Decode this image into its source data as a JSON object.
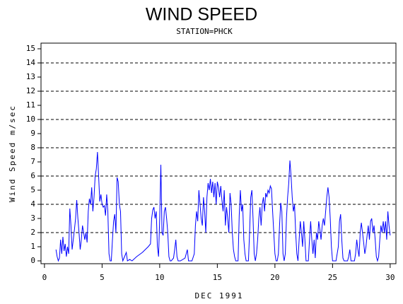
{
  "chart_data": {
    "type": "line",
    "title": "WIND SPEED",
    "subtitle": "STATION=PHCK",
    "ylabel": "Wind Speed m/sec",
    "xlabel": "DEC 1991",
    "color": "#0000ff",
    "xlim": [
      -0.3,
      30.5
    ],
    "ylim": [
      -0.2,
      15.4
    ],
    "xticks": [
      0,
      5,
      10,
      15,
      20,
      25,
      30
    ],
    "yticks": [
      0,
      1,
      2,
      3,
      4,
      5,
      6,
      7,
      8,
      9,
      10,
      11,
      12,
      13,
      14,
      15
    ],
    "ygrid": [
      2,
      4,
      6,
      8,
      10,
      12,
      14
    ],
    "x": [
      1.0,
      1.1,
      1.2,
      1.3,
      1.4,
      1.5,
      1.6,
      1.7,
      1.8,
      1.9,
      2.0,
      2.1,
      2.2,
      2.3,
      2.4,
      2.5,
      2.6,
      2.7,
      2.8,
      2.9,
      3.0,
      3.1,
      3.2,
      3.3,
      3.4,
      3.5,
      3.6,
      3.7,
      3.8,
      3.9,
      4.0,
      4.1,
      4.2,
      4.3,
      4.4,
      4.5,
      4.6,
      4.7,
      4.8,
      4.9,
      5.0,
      5.1,
      5.2,
      5.3,
      5.4,
      5.5,
      5.6,
      5.7,
      5.8,
      5.9,
      6.0,
      6.1,
      6.2,
      6.3,
      6.4,
      6.5,
      6.6,
      6.7,
      6.8,
      6.9,
      7.0,
      7.1,
      7.2,
      7.4,
      7.6,
      8.0,
      8.5,
      9.0,
      9.2,
      9.3,
      9.4,
      9.5,
      9.6,
      9.7,
      9.8,
      9.9,
      10.0,
      10.1,
      10.2,
      10.3,
      10.4,
      10.5,
      10.6,
      10.7,
      10.8,
      10.9,
      11.0,
      11.2,
      11.3,
      11.4,
      11.5,
      11.6,
      11.8,
      12.2,
      12.4,
      12.5,
      12.8,
      13.0,
      13.1,
      13.2,
      13.3,
      13.4,
      13.5,
      13.6,
      13.7,
      13.8,
      13.9,
      14.0,
      14.1,
      14.2,
      14.3,
      14.4,
      14.5,
      14.6,
      14.7,
      14.8,
      14.9,
      15.0,
      15.1,
      15.2,
      15.3,
      15.4,
      15.5,
      15.6,
      15.7,
      15.8,
      15.9,
      16.0,
      16.1,
      16.2,
      16.3,
      16.4,
      16.5,
      16.6,
      16.7,
      16.8,
      16.9,
      17.0,
      17.1,
      17.2,
      17.3,
      17.4,
      17.5,
      17.6,
      17.7,
      17.8,
      17.9,
      18.0,
      18.1,
      18.2,
      18.3,
      18.4,
      18.5,
      18.6,
      18.7,
      18.8,
      18.9,
      19.0,
      19.1,
      19.2,
      19.3,
      19.4,
      19.5,
      19.6,
      19.7,
      19.8,
      19.9,
      20.0,
      20.1,
      20.2,
      20.3,
      20.4,
      20.5,
      20.6,
      20.7,
      20.8,
      20.9,
      21.0,
      21.1,
      21.2,
      21.3,
      21.4,
      21.5,
      21.6,
      21.7,
      21.8,
      21.9,
      22.0,
      22.1,
      22.2,
      22.3,
      22.4,
      22.5,
      22.6,
      22.7,
      22.8,
      22.9,
      23.0,
      23.1,
      23.2,
      23.3,
      23.4,
      23.5,
      23.6,
      23.7,
      23.8,
      23.9,
      24.0,
      24.1,
      24.2,
      24.3,
      24.4,
      24.5,
      24.6,
      24.7,
      24.8,
      24.9,
      25.0,
      25.1,
      25.2,
      25.3,
      25.4,
      25.5,
      25.6,
      25.7,
      25.8,
      25.9,
      26.0,
      26.1,
      26.2,
      26.3,
      26.4,
      26.5,
      26.6,
      26.7,
      26.8,
      26.9,
      27.0,
      27.1,
      27.2,
      27.3,
      27.4,
      27.5,
      27.6,
      27.7,
      27.8,
      27.9,
      28.0,
      28.1,
      28.2,
      28.3,
      28.4,
      28.5,
      28.6,
      28.7,
      28.8,
      28.9,
      29.0,
      29.1,
      29.2,
      29.3,
      29.4,
      29.5,
      29.6,
      29.7,
      29.8,
      29.9,
      30.0
    ],
    "values": [
      0.8,
      0.3,
      0,
      0.2,
      1.5,
      0.5,
      1.7,
      0.7,
      1.2,
      0.3,
      1.0,
      0.5,
      3.7,
      2.5,
      0.8,
      1.5,
      2.2,
      3.0,
      4.3,
      3.0,
      2.0,
      0.8,
      1.5,
      2.5,
      2.0,
      1.5,
      2.0,
      1.3,
      3.5,
      4.4,
      4.0,
      5.2,
      3.5,
      4.5,
      6.0,
      6.5,
      7.7,
      6.0,
      4.2,
      4.7,
      4.0,
      3.8,
      3.9,
      3.2,
      4.7,
      3.5,
      0.5,
      0,
      0,
      1.5,
      2.8,
      3.3,
      2.0,
      5.9,
      5.6,
      4.0,
      3.5,
      0.5,
      0,
      0.2,
      0.4,
      0.6,
      0,
      0.1,
      0,
      0.3,
      0.6,
      1.0,
      1.2,
      3.0,
      3.6,
      3.8,
      3.0,
      3.5,
      1.0,
      0.3,
      3.0,
      6.8,
      2.0,
      1.8,
      3.5,
      3.8,
      3.0,
      2.0,
      0.3,
      0,
      0,
      0.2,
      0.8,
      1.5,
      0.3,
      0,
      0,
      0.2,
      0.8,
      0,
      0,
      0.5,
      2.5,
      3.5,
      2.8,
      5.0,
      4.0,
      3.0,
      2.5,
      4.5,
      3.5,
      2.0,
      4.5,
      5.5,
      5.0,
      5.8,
      4.8,
      5.6,
      4.5,
      5.5,
      4.0,
      5.6,
      5.2,
      4.5,
      5.3,
      4.3,
      3.5,
      5.0,
      2.5,
      3.8,
      3.0,
      2.0,
      4.8,
      4.0,
      2.0,
      0.8,
      0.3,
      0,
      0,
      0,
      3.2,
      5.0,
      3.5,
      4.0,
      1.5,
      0.5,
      0,
      0,
      0,
      2.0,
      4.5,
      5.0,
      3.0,
      0.5,
      0,
      0.5,
      1.5,
      3.0,
      3.8,
      2.5,
      4.0,
      4.5,
      3.5,
      4.8,
      4.5,
      5.0,
      4.8,
      5.3,
      5.1,
      3.5,
      2.0,
      0.5,
      0,
      0,
      0.5,
      2.5,
      4.1,
      3.5,
      0.5,
      0,
      0.5,
      3.0,
      4.5,
      5.5,
      7.1,
      6.0,
      4.5,
      3.5,
      4.0,
      2.0,
      0.5,
      0,
      1.5,
      2.8,
      2.0,
      1.0,
      2.8,
      1.5,
      0,
      0,
      0,
      1.5,
      2.8,
      1.5,
      0.5,
      1.5,
      0.2,
      2.0,
      1.5,
      2.8,
      2.2,
      1.5,
      2.5,
      3.0,
      2.5,
      3.5,
      4.5,
      5.2,
      4.5,
      3.0,
      1.0,
      0,
      0,
      0,
      0,
      0.5,
      1.0,
      2.8,
      3.3,
      1.5,
      0.2,
      0,
      0,
      0,
      0,
      0.3,
      0.8,
      0,
      0,
      0,
      0,
      0.5,
      1.5,
      0.8,
      0.3,
      2.0,
      2.7,
      2.0,
      1.3,
      0.5,
      1.0,
      1.8,
      2.5,
      1.5,
      2.8,
      3.0,
      2.0,
      2.5,
      1.5,
      0.3,
      0,
      0.3,
      1.5,
      2.5,
      2.0,
      2.8,
      2.0,
      2.8,
      1.5,
      3.5,
      2.5,
      1.8
    ]
  }
}
